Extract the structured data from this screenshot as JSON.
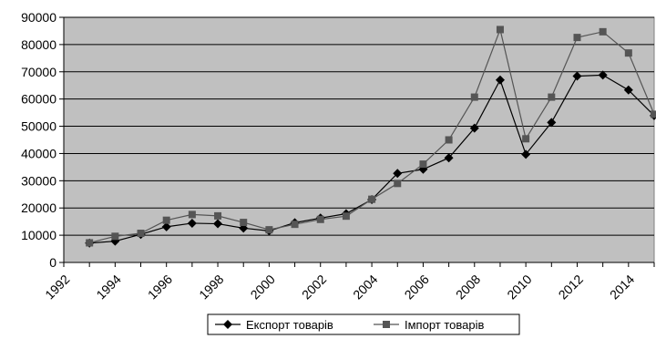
{
  "chart_data": {
    "type": "line",
    "title": "",
    "xlabel": "",
    "ylabel": "",
    "x": [
      1993,
      1994,
      1995,
      1996,
      1997,
      1998,
      1999,
      2000,
      2001,
      2002,
      2003,
      2004,
      2005,
      2006,
      2007,
      2008,
      2009,
      2010,
      2011,
      2012,
      2013,
      2014,
      2015
    ],
    "x_ticks": [
      1992,
      1994,
      1996,
      1998,
      2000,
      2002,
      2004,
      2006,
      2008,
      2010,
      2012,
      2014
    ],
    "y_ticks": [
      0,
      10000,
      20000,
      30000,
      40000,
      50000,
      60000,
      70000,
      80000,
      90000
    ],
    "xlim": [
      1992,
      2015
    ],
    "ylim": [
      0,
      90000
    ],
    "grid": true,
    "legend_position": "bottom",
    "plot_background": "#c0c0c0",
    "series": [
      {
        "name": "Експорт товарів",
        "marker": "diamond",
        "color": "#000000",
        "values": [
          7100,
          7800,
          10300,
          13100,
          14400,
          14200,
          12600,
          11600,
          14600,
          16300,
          17900,
          23100,
          32700,
          34200,
          38400,
          49300,
          67000,
          39700,
          51400,
          68400,
          68800,
          63300,
          53900
        ]
      },
      {
        "name": "Імпорт товарів",
        "marker": "square",
        "color": "#555555",
        "values": [
          7200,
          9600,
          10700,
          15500,
          17600,
          17100,
          14700,
          12000,
          14000,
          15800,
          17000,
          23200,
          29000,
          36100,
          45000,
          60700,
          85500,
          45400,
          60700,
          82600,
          84700,
          76900,
          54400
        ]
      }
    ]
  }
}
